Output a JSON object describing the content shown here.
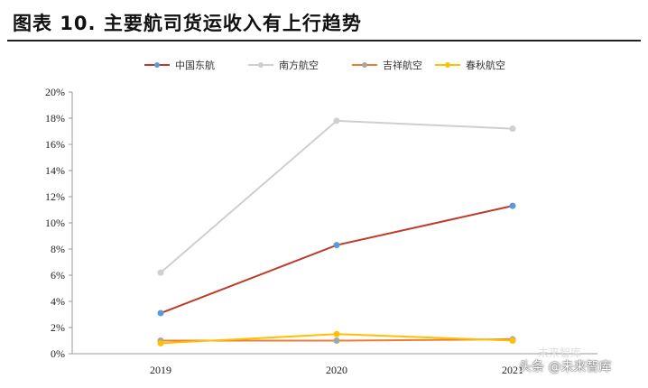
{
  "title": "图表 10. 主要航司货运收入有上行趋势",
  "watermark_faint": "未来智库",
  "watermark": "头条 @未来智库",
  "colors": {
    "axis": "#999999",
    "title_rule": "#222222"
  },
  "chart_data": {
    "type": "line",
    "title": "图表 10. 主要航司货运收入有上行趋势",
    "xlabel": "",
    "ylabel": "",
    "categories": [
      "2019",
      "2020",
      "2021"
    ],
    "ylim": [
      0,
      0.2
    ],
    "y_ticks": [
      0,
      0.02,
      0.04,
      0.06,
      0.08,
      0.1,
      0.12,
      0.14,
      0.16,
      0.18,
      0.2
    ],
    "y_tick_labels": [
      "0%",
      "2%",
      "4%",
      "6%",
      "8%",
      "10%",
      "12%",
      "14%",
      "16%",
      "18%",
      "20%"
    ],
    "grid": false,
    "legend_position": "top",
    "series": [
      {
        "name": "中国东航",
        "values": [
          0.031,
          0.083,
          0.113
        ],
        "color": "#c0392b",
        "marker": "#5b9bd5"
      },
      {
        "name": "南方航空",
        "values": [
          0.062,
          0.178,
          0.172
        ],
        "color": "#cfcfcf",
        "marker": "#cfcfcf"
      },
      {
        "name": "吉祥航空",
        "values": [
          0.01,
          0.01,
          0.011
        ],
        "color": "#ed7d31",
        "marker": "#a5a5a5"
      },
      {
        "name": "春秋航空",
        "values": [
          0.008,
          0.015,
          0.01
        ],
        "color": "#ffc000",
        "marker": "#ffc000"
      }
    ]
  }
}
